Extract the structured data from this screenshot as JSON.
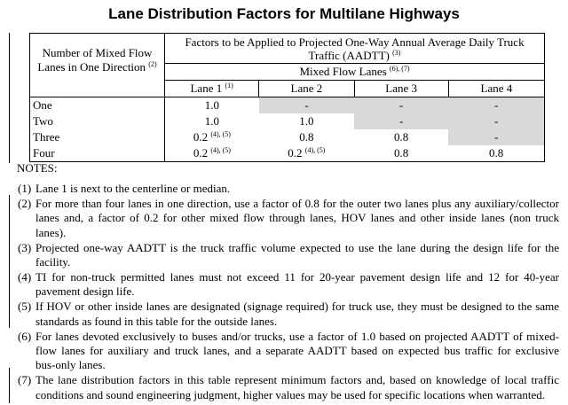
{
  "title": "Lane Distribution Factors for Multilane Highways",
  "table": {
    "row_header": "Number of Mixed Flow Lanes in One Direction",
    "row_header_sup": "(2)",
    "group_header": "Factors to be Applied to Projected One-Way Annual Average Daily Truck Traffic (AADTT)",
    "group_header_sup": "(3)",
    "sub_header": "Mixed Flow Lanes",
    "sub_header_sup": "(6), (7)",
    "columns": [
      {
        "label": "Lane 1",
        "sup": "(1)"
      },
      {
        "label": "Lane 2",
        "sup": ""
      },
      {
        "label": "Lane 3",
        "sup": ""
      },
      {
        "label": "Lane 4",
        "sup": ""
      }
    ],
    "rows": [
      {
        "label": "One",
        "cells": [
          {
            "v": "1.0",
            "s": ""
          },
          {
            "v": "-",
            "s": ""
          },
          {
            "v": "-",
            "s": ""
          },
          {
            "v": "-",
            "s": ""
          }
        ]
      },
      {
        "label": "Two",
        "cells": [
          {
            "v": "1.0",
            "s": ""
          },
          {
            "v": "1.0",
            "s": ""
          },
          {
            "v": "-",
            "s": ""
          },
          {
            "v": "-",
            "s": ""
          }
        ]
      },
      {
        "label": "Three",
        "cells": [
          {
            "v": "0.2",
            "s": "(4), (5)"
          },
          {
            "v": "0.8",
            "s": ""
          },
          {
            "v": "0.8",
            "s": ""
          },
          {
            "v": "-",
            "s": ""
          }
        ]
      },
      {
        "label": "Four",
        "cells": [
          {
            "v": "0.2",
            "s": "(4), (5)"
          },
          {
            "v": "0.2",
            "s": "(4), (5)"
          },
          {
            "v": "0.8",
            "s": ""
          },
          {
            "v": "0.8",
            "s": ""
          }
        ]
      }
    ],
    "shade_color": "#d9d9d9"
  },
  "notes_heading": "NOTES:",
  "notes": [
    {
      "num": "(1)",
      "lines": [
        "Lane 1 is next to the centerline or median."
      ]
    },
    {
      "num": "(2)",
      "lines": [
        "For more than four lanes in one direction, use a factor of 0.8 for the outer two lanes plus any auxiliary/collector",
        "lanes and, a factor of 0.2 for other mixed flow through lanes, HOV lanes and other inside lanes (non truck",
        "lanes)."
      ]
    },
    {
      "num": "(3)",
      "lines": [
        "Projected one-way AADTT is the truck traffic volume expected to use the lane during the design life for the",
        "facility."
      ]
    },
    {
      "num": "(4)",
      "lines": [
        "TI for non-truck permitted lanes must not exceed 11 for 20-year pavement design life and 12 for 40-year",
        "pavement design life."
      ]
    },
    {
      "num": "(5)",
      "lines": [
        "If HOV or other inside lanes are designated (signage required) for truck use, they must be designed to the same",
        "standards as found in this table for the outside lanes."
      ]
    },
    {
      "num": "(6)",
      "lines": [
        "For lanes devoted exclusively to buses and/or trucks, use a factor of 1.0 based on projected AADTT of mixed-",
        "flow lanes for auxiliary and truck lanes, and a separate AADTT based on expected bus traffic for exclusive",
        "bus-only lanes."
      ]
    },
    {
      "num": "(7)",
      "lines": [
        "The lane distribution factors in this table represent minimum factors and, based on knowledge of local traffic",
        "conditions and sound engineering judgment, higher values may be used for specific locations when warranted."
      ]
    }
  ]
}
